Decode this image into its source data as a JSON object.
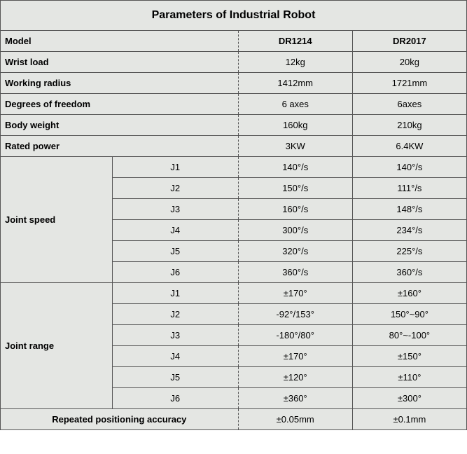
{
  "table": {
    "title": "Parameters of Industrial Robot",
    "header": {
      "model_label": "Model",
      "col_a": "DR1214",
      "col_b": "DR2017"
    },
    "simple_rows": [
      {
        "label": "Wrist load",
        "a": "12kg",
        "b": "20kg"
      },
      {
        "label": "Working radius",
        "a": "1412mm",
        "b": "1721mm"
      },
      {
        "label": "Degrees of freedom",
        "a": "6 axes",
        "b": "6axes"
      },
      {
        "label": "Body weight",
        "a": "160kg",
        "b": "210kg"
      },
      {
        "label": "Rated power",
        "a": "3KW",
        "b": "6.4KW"
      }
    ],
    "joint_speed": {
      "label": "Joint speed",
      "rows": [
        {
          "joint": "J1",
          "a": "140°/s",
          "b": "140°/s"
        },
        {
          "joint": "J2",
          "a": "150°/s",
          "b": "111°/s"
        },
        {
          "joint": "J3",
          "a": "160°/s",
          "b": "148°/s"
        },
        {
          "joint": "J4",
          "a": "300°/s",
          "b": "234°/s"
        },
        {
          "joint": "J5",
          "a": "320°/s",
          "b": "225°/s"
        },
        {
          "joint": "J6",
          "a": "360°/s",
          "b": "360°/s"
        }
      ]
    },
    "joint_range": {
      "label": "Joint range",
      "rows": [
        {
          "joint": "J1",
          "a": "±170°",
          "b": "±160°"
        },
        {
          "joint": "J2",
          "a": "-92°/153°",
          "b": "150°~90°"
        },
        {
          "joint": "J3",
          "a": "-180°/80°",
          "b": "80°~-100°"
        },
        {
          "joint": "J4",
          "a": "±170°",
          "b": "±150°"
        },
        {
          "joint": "J5",
          "a": "±120°",
          "b": "±110°"
        },
        {
          "joint": "J6",
          "a": "±360°",
          "b": "±300°"
        }
      ]
    },
    "footer": {
      "label": "Repeated positioning accuracy",
      "a": "±0.05mm",
      "b": "±0.1mm"
    },
    "style": {
      "font_family": "Arial, sans-serif",
      "title_fontsize": 16,
      "title_fontweight": "bold",
      "cell_fontsize": 13,
      "cell_bg": "#e4e6e3",
      "border_color": "#555555",
      "text_color": "#000000",
      "col_widths_pct": [
        24,
        27,
        24.5,
        24.5
      ],
      "row_padding_v": 7,
      "middle_border_style": "dashed"
    }
  }
}
